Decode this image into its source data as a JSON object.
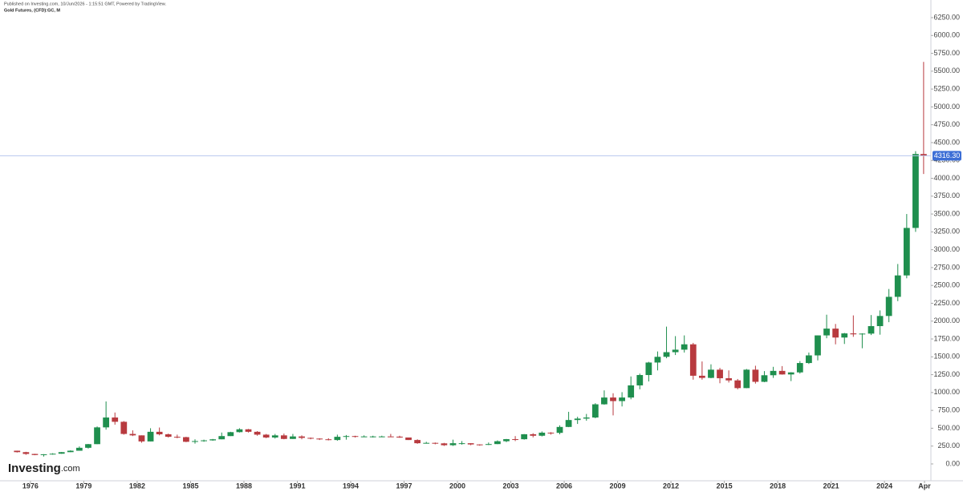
{
  "header": {
    "published": "Published on Investing.com, 10/Jun/2026 - 1:15:51 GMT, Powered by TradingView.",
    "symbol": "Gold Futures, (CFD):GC, M"
  },
  "logo": {
    "brand": "Investing",
    "suffix": ".com"
  },
  "chart_data": {
    "type": "candlestick",
    "up_color": "#1f8f4e",
    "down_color": "#b83a3f",
    "x": [
      1975.25,
      1975.75,
      1976.25,
      1976.75,
      1977.25,
      1977.75,
      1978.25,
      1978.75,
      1979.25,
      1979.75,
      1980.25,
      1980.75,
      1981.25,
      1981.75,
      1982.25,
      1982.75,
      1983.25,
      1983.75,
      1984.25,
      1984.75,
      1985.25,
      1985.75,
      1986.25,
      1986.75,
      1987.25,
      1987.75,
      1988.25,
      1988.75,
      1989.25,
      1989.75,
      1990.25,
      1990.75,
      1991.25,
      1991.75,
      1992.25,
      1992.75,
      1993.25,
      1993.75,
      1994.25,
      1994.75,
      1995.25,
      1995.75,
      1996.25,
      1996.75,
      1997.25,
      1997.75,
      1998.25,
      1998.75,
      1999.25,
      1999.75,
      2000.25,
      2000.75,
      2001.25,
      2001.75,
      2002.25,
      2002.75,
      2003.25,
      2003.75,
      2004.25,
      2004.75,
      2005.25,
      2005.75,
      2006.25,
      2006.75,
      2007.25,
      2007.75,
      2008.25,
      2008.75,
      2009.25,
      2009.75,
      2010.25,
      2010.75,
      2011.25,
      2011.75,
      2012.25,
      2012.75,
      2013.25,
      2013.75,
      2014.25,
      2014.75,
      2015.25,
      2015.75,
      2016.25,
      2016.75,
      2017.25,
      2017.75,
      2018.25,
      2018.75,
      2019.25,
      2019.75,
      2020.25,
      2020.75,
      2021.25,
      2021.75,
      2022.25,
      2022.75,
      2023.25,
      2023.75,
      2024.25,
      2024.75,
      2025.25,
      2025.75,
      2026.2
    ],
    "open": [
      185,
      165,
      140,
      125,
      135,
      143,
      165,
      185,
      226,
      277,
      512,
      650,
      590,
      420,
      400,
      315,
      450,
      415,
      380,
      375,
      310,
      320,
      330,
      345,
      390,
      445,
      485,
      450,
      410,
      370,
      400,
      350,
      385,
      365,
      355,
      345,
      335,
      380,
      390,
      385,
      385,
      385,
      385,
      382,
      370,
      335,
      290,
      295,
      288,
      262,
      290,
      290,
      273,
      270,
      278,
      318,
      347,
      346,
      416,
      395,
      438,
      435,
      518,
      615,
      635,
      650,
      835,
      930,
      880,
      930,
      1100,
      1245,
      1420,
      1500,
      1565,
      1600,
      1675,
      1235,
      1205,
      1320,
      1200,
      1170,
      1062,
      1320,
      1150,
      1242,
      1303,
      1253,
      1282,
      1413,
      1520,
      1800,
      1895,
      1770,
      1828,
      1815,
      1825,
      1930,
      2072,
      2340,
      2640,
      3305,
      4340
    ],
    "high": [
      186,
      170,
      142,
      137,
      150,
      167,
      190,
      245,
      280,
      525,
      875,
      720,
      600,
      470,
      400,
      500,
      510,
      425,
      410,
      380,
      345,
      340,
      350,
      440,
      450,
      500,
      490,
      460,
      420,
      420,
      425,
      420,
      400,
      370,
      360,
      360,
      410,
      405,
      395,
      400,
      395,
      395,
      420,
      395,
      370,
      345,
      310,
      300,
      295,
      340,
      320,
      290,
      275,
      300,
      330,
      350,
      390,
      418,
      430,
      455,
      445,
      540,
      730,
      660,
      700,
      850,
      1030,
      990,
      1005,
      1225,
      1265,
      1430,
      1575,
      1923,
      1790,
      1800,
      1695,
      1435,
      1395,
      1345,
      1310,
      1190,
      1330,
      1375,
      1300,
      1360,
      1370,
      1285,
      1440,
      1560,
      1800,
      2090,
      1960,
      1835,
      2080,
      1830,
      2085,
      2150,
      2450,
      2800,
      3500,
      4380,
      5630
    ],
    "low": [
      160,
      128,
      122,
      103,
      130,
      142,
      165,
      185,
      215,
      277,
      480,
      550,
      410,
      390,
      297,
      315,
      400,
      370,
      360,
      305,
      284,
      310,
      325,
      345,
      390,
      440,
      440,
      395,
      360,
      355,
      345,
      350,
      345,
      345,
      335,
      330,
      325,
      340,
      370,
      375,
      370,
      375,
      380,
      365,
      335,
      282,
      285,
      275,
      252,
      252,
      270,
      262,
      255,
      265,
      277,
      305,
      320,
      340,
      372,
      385,
      410,
      415,
      515,
      560,
      605,
      640,
      830,
      680,
      805,
      905,
      1045,
      1155,
      1310,
      1480,
      1525,
      1560,
      1180,
      1180,
      1200,
      1130,
      1140,
      1045,
      1060,
      1125,
      1145,
      1205,
      1250,
      1160,
      1265,
      1400,
      1450,
      1760,
      1675,
      1680,
      1780,
      1620,
      1805,
      1810,
      1985,
      2280,
      2600,
      3250,
      4060
    ],
    "close": [
      165,
      140,
      125,
      135,
      143,
      165,
      185,
      226,
      277,
      512,
      650,
      590,
      420,
      400,
      315,
      450,
      415,
      380,
      375,
      310,
      320,
      330,
      345,
      390,
      445,
      485,
      450,
      410,
      370,
      400,
      350,
      385,
      365,
      355,
      345,
      335,
      380,
      390,
      385,
      385,
      385,
      385,
      382,
      370,
      335,
      290,
      295,
      288,
      262,
      290,
      290,
      273,
      270,
      278,
      318,
      347,
      346,
      416,
      395,
      438,
      435,
      518,
      615,
      635,
      650,
      835,
      930,
      880,
      930,
      1100,
      1245,
      1420,
      1500,
      1565,
      1600,
      1675,
      1235,
      1205,
      1320,
      1200,
      1170,
      1062,
      1320,
      1150,
      1242,
      1303,
      1253,
      1282,
      1413,
      1520,
      1800,
      1895,
      1770,
      1828,
      1815,
      1825,
      1930,
      2072,
      2340,
      2640,
      3305,
      4340,
      4316.3
    ],
    "last_price": {
      "value": 4316.3,
      "label": "4316.30"
    },
    "xlim": [
      1974.29,
      2026.61
    ],
    "xticks": [
      1976,
      1979,
      1982,
      1985,
      1988,
      1991,
      1994,
      1997,
      2000,
      2003,
      2006,
      2009,
      2012,
      2015,
      2018,
      2021,
      2024,
      {
        "value": 2026.25,
        "label": "Apr"
      }
    ],
    "ylim": [
      -236,
      6497
    ],
    "yticks": [
      {
        "value": 0,
        "label": "0.00"
      },
      {
        "value": 250,
        "label": "250.00"
      },
      {
        "value": 500,
        "label": "500.00"
      },
      {
        "value": 750,
        "label": "750.00"
      },
      {
        "value": 1000,
        "label": "1000.00"
      },
      {
        "value": 1250,
        "label": "1250.00"
      },
      {
        "value": 1500,
        "label": "1500.00"
      },
      {
        "value": 1750,
        "label": "1750.00"
      },
      {
        "value": 2000,
        "label": "2000.00"
      },
      {
        "value": 2250,
        "label": "2250.00"
      },
      {
        "value": 2500,
        "label": "2500.00"
      },
      {
        "value": 2750,
        "label": "2750.00"
      },
      {
        "value": 3000,
        "label": "3000.00"
      },
      {
        "value": 3250,
        "label": "3250.00"
      },
      {
        "value": 3500,
        "label": "3500.00"
      },
      {
        "value": 3750,
        "label": "3750.00"
      },
      {
        "value": 4000,
        "label": "4000.00"
      },
      {
        "value": 4250,
        "label": "4250.00"
      },
      {
        "value": 4500,
        "label": "4500.00"
      },
      {
        "value": 4750,
        "label": "4750.00"
      },
      {
        "value": 5000,
        "label": "5000.00"
      },
      {
        "value": 5250,
        "label": "5250.00"
      },
      {
        "value": 5500,
        "label": "5500.00"
      },
      {
        "value": 5750,
        "label": "5750.00"
      },
      {
        "value": 6000,
        "label": "6000.00"
      },
      {
        "value": 6250,
        "label": "6250.00"
      }
    ]
  }
}
